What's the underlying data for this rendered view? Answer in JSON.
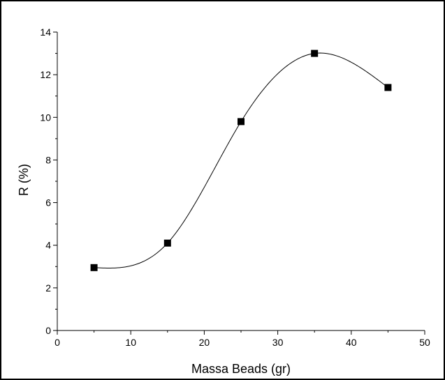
{
  "chart_data": {
    "type": "scatter",
    "title": "",
    "xlabel": "Massa Beads (gr)",
    "ylabel": "R (%)",
    "xlim": [
      0,
      50
    ],
    "ylim": [
      0,
      14
    ],
    "x_ticks": [
      0,
      10,
      20,
      30,
      40,
      50
    ],
    "y_ticks": [
      0,
      2,
      4,
      6,
      8,
      10,
      12,
      14
    ],
    "x_tick_labels": [
      "0",
      "10",
      "20",
      "30",
      "40",
      "50"
    ],
    "y_tick_labels": [
      "0",
      "2",
      "4",
      "6",
      "8",
      "10",
      "12",
      "14"
    ],
    "grid": false,
    "legend": "none",
    "series": [
      {
        "marker": "square",
        "line": "smooth-spline",
        "color": "#000000",
        "x": [
          5,
          15,
          25,
          35,
          45
        ],
        "y": [
          2.95,
          4.1,
          9.8,
          13.0,
          11.4
        ]
      }
    ]
  }
}
